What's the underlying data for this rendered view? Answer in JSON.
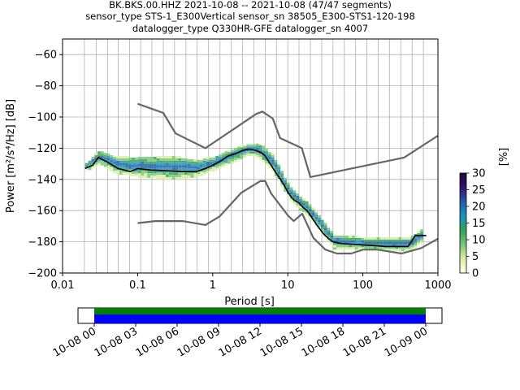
{
  "chart_data": {
    "type": "heatmap",
    "title_lines": [
      "BK.BKS.00.HHZ   2021-10-08 -- 2021-10-08  (47/47 segments)",
      "sensor_type STS-1_E300Vertical sensor_sn 38505_E300-STS1-120-198",
      "datalogger_type Q330HR-GFE datalogger_sn 4007"
    ],
    "xlabel": "Period [s]",
    "ylabel": "Power [m²/s⁴/Hz] [dB]",
    "xscale": "log",
    "xlim": [
      0.01,
      1000
    ],
    "ylim": [
      -200,
      -50
    ],
    "x_ticks": [
      {
        "value": 0.01,
        "label": "0.01"
      },
      {
        "value": 0.1,
        "label": "0.1"
      },
      {
        "value": 1,
        "label": "1"
      },
      {
        "value": 10,
        "label": "10"
      },
      {
        "value": 100,
        "label": "100"
      },
      {
        "value": 1000,
        "label": "1000"
      }
    ],
    "y_ticks": [
      {
        "value": -60,
        "label": "−60"
      },
      {
        "value": -80,
        "label": "−80"
      },
      {
        "value": -100,
        "label": "−100"
      },
      {
        "value": -120,
        "label": "−120"
      },
      {
        "value": -140,
        "label": "−140"
      },
      {
        "value": -160,
        "label": "−160"
      },
      {
        "value": -180,
        "label": "−180"
      },
      {
        "value": -200,
        "label": "−200"
      }
    ],
    "vertical_grid_periods": [
      0.0195,
      0.028,
      0.04,
      0.055,
      0.078,
      0.11,
      0.155,
      0.22,
      0.31,
      0.44,
      0.62,
      0.88,
      1.25,
      1.77,
      2.5,
      3.54,
      5.0,
      7.07,
      10,
      14.1,
      20,
      28.3,
      40,
      56.6,
      80,
      113,
      160,
      226,
      320,
      453,
      640
    ],
    "series": [
      {
        "name": "NHNM",
        "role": "noise-model",
        "color": "#666666",
        "points": [
          [
            0.1,
            -91.5
          ],
          [
            0.22,
            -97.4
          ],
          [
            0.32,
            -110.5
          ],
          [
            0.8,
            -120
          ],
          [
            3.8,
            -98
          ],
          [
            4.6,
            -96.5
          ],
          [
            6.3,
            -101
          ],
          [
            7.9,
            -113.5
          ],
          [
            15.4,
            -120
          ],
          [
            20,
            -138.5
          ],
          [
            354.8,
            -126
          ],
          [
            1000,
            -112
          ]
        ]
      },
      {
        "name": "NLNM",
        "role": "noise-model",
        "color": "#666666",
        "points": [
          [
            0.1,
            -168
          ],
          [
            0.17,
            -166.7
          ],
          [
            0.4,
            -166.7
          ],
          [
            0.8,
            -169.2
          ],
          [
            1.24,
            -163.7
          ],
          [
            2.4,
            -148.6
          ],
          [
            4.3,
            -141.1
          ],
          [
            5.0,
            -141.1
          ],
          [
            6.0,
            -149
          ],
          [
            10,
            -163
          ],
          [
            12,
            -166.7
          ],
          [
            15.6,
            -162
          ],
          [
            21.9,
            -177.5
          ],
          [
            31.6,
            -185
          ],
          [
            45,
            -187.5
          ],
          [
            70,
            -187.5
          ],
          [
            101,
            -185
          ],
          [
            154,
            -185
          ],
          [
            328,
            -187.5
          ],
          [
            600,
            -184
          ],
          [
            1000,
            -178
          ]
        ]
      },
      {
        "name": "mode",
        "role": "mode-line",
        "color": "#000000",
        "points": [
          [
            0.02,
            -133
          ],
          [
            0.025,
            -131
          ],
          [
            0.03,
            -126
          ],
          [
            0.04,
            -129
          ],
          [
            0.055,
            -133
          ],
          [
            0.08,
            -135
          ],
          [
            0.1,
            -133
          ],
          [
            0.15,
            -134
          ],
          [
            0.25,
            -134.5
          ],
          [
            0.4,
            -135
          ],
          [
            0.6,
            -135
          ],
          [
            0.8,
            -133
          ],
          [
            1.0,
            -131
          ],
          [
            1.3,
            -128
          ],
          [
            1.6,
            -125
          ],
          [
            2.0,
            -123.5
          ],
          [
            2.5,
            -121.5
          ],
          [
            3.0,
            -120.5
          ],
          [
            3.5,
            -121
          ],
          [
            4.0,
            -122
          ],
          [
            4.5,
            -123
          ],
          [
            5.0,
            -125
          ],
          [
            5.5,
            -128
          ],
          [
            6.0,
            -131
          ],
          [
            7.0,
            -136
          ],
          [
            8.0,
            -140
          ],
          [
            9.0,
            -144
          ],
          [
            10,
            -148
          ],
          [
            11,
            -151
          ],
          [
            12,
            -153
          ],
          [
            14,
            -155
          ],
          [
            16,
            -158
          ],
          [
            18,
            -160
          ],
          [
            20,
            -163
          ],
          [
            25,
            -170
          ],
          [
            30,
            -175
          ],
          [
            35,
            -178
          ],
          [
            40,
            -180
          ],
          [
            50,
            -181
          ],
          [
            70,
            -181.5
          ],
          [
            100,
            -182
          ],
          [
            150,
            -182.5
          ],
          [
            200,
            -183
          ],
          [
            300,
            -183
          ],
          [
            400,
            -183
          ],
          [
            500,
            -176
          ],
          [
            700,
            -176
          ]
        ]
      }
    ],
    "density_band": {
      "description_points": [
        [
          0.02,
          -134,
          -130
        ],
        [
          0.03,
          -130,
          -122
        ],
        [
          0.05,
          -136,
          -126
        ],
        [
          0.1,
          -138,
          -126
        ],
        [
          0.3,
          -140,
          -126
        ],
        [
          0.6,
          -138,
          -128
        ],
        [
          1.0,
          -134,
          -126
        ],
        [
          2.0,
          -128,
          -120
        ],
        [
          3.0,
          -124,
          -118
        ],
        [
          4.0,
          -126,
          -118
        ],
        [
          6.0,
          -134,
          -124
        ],
        [
          10,
          -152,
          -144
        ],
        [
          20,
          -166,
          -158
        ],
        [
          40,
          -184,
          -176
        ],
        [
          100,
          -185,
          -178
        ],
        [
          400,
          -186,
          -178
        ],
        [
          600,
          -180,
          -172
        ]
      ]
    },
    "colorbar": {
      "label": "[%]",
      "min": 0,
      "max": 30,
      "ticks": [
        {
          "value": 0,
          "label": "0"
        },
        {
          "value": 5,
          "label": "5"
        },
        {
          "value": 10,
          "label": "10"
        },
        {
          "value": 15,
          "label": "15"
        },
        {
          "value": 20,
          "label": "20"
        },
        {
          "value": 25,
          "label": "25"
        },
        {
          "value": 30,
          "label": "30"
        }
      ],
      "colors": [
        "#ffffe5",
        "#d9f0a3",
        "#78c679",
        "#31a354",
        "#1d91c0",
        "#225ea8",
        "#3b0f70",
        "#1a0a33"
      ]
    },
    "timeline": {
      "type": "coverage-bars",
      "start": "10-08 00",
      "end": "10-09 00",
      "data_color": "#008000",
      "gaps_color": "#0000ff",
      "ticks": [
        "10-08 00",
        "10-08 03",
        "10-08 06",
        "10-08 09",
        "10-08 12",
        "10-08 15",
        "10-08 18",
        "10-08 21",
        "10-09 00"
      ]
    }
  }
}
